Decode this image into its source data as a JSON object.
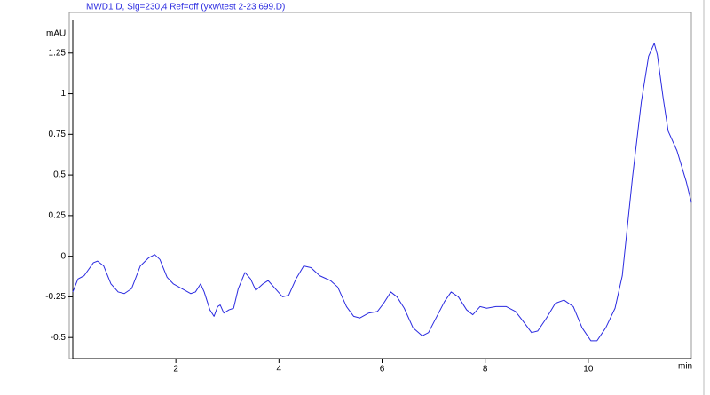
{
  "chart_data": {
    "type": "line",
    "title": "MWD1 D, Sig=230,4 Ref=off (yxw\\test 2-23 699.D)",
    "y_label": "mAU",
    "x_label": "min",
    "xlim": [
      0,
      12
    ],
    "ylim": [
      -0.63,
      1.5
    ],
    "xticks": [
      2,
      4,
      6,
      8,
      10
    ],
    "yticks": [
      -0.5,
      -0.25,
      0,
      0.25,
      0.5,
      0.75,
      1,
      1.25
    ],
    "x": [
      0,
      0.1,
      0.22,
      0.4,
      0.48,
      0.6,
      0.74,
      0.88,
      1.0,
      1.14,
      1.31,
      1.47,
      1.59,
      1.69,
      1.83,
      1.95,
      2.12,
      2.29,
      2.38,
      2.48,
      2.55,
      2.66,
      2.74,
      2.81,
      2.86,
      2.93,
      3.03,
      3.12,
      3.21,
      3.34,
      3.45,
      3.55,
      3.69,
      3.79,
      3.93,
      4.07,
      4.19,
      4.33,
      4.48,
      4.62,
      4.79,
      5.0,
      5.14,
      5.31,
      5.45,
      5.57,
      5.74,
      5.91,
      6.03,
      6.17,
      6.29,
      6.43,
      6.6,
      6.78,
      6.9,
      7.03,
      7.21,
      7.34,
      7.48,
      7.64,
      7.76,
      7.9,
      8.03,
      8.21,
      8.41,
      8.59,
      8.76,
      8.9,
      9.02,
      9.19,
      9.36,
      9.53,
      9.71,
      9.88,
      10.05,
      10.17,
      10.34,
      10.52,
      10.66,
      10.86,
      11.03,
      11.17,
      11.28,
      11.34,
      11.45,
      11.55,
      11.72,
      11.9,
      12.0
    ],
    "series": [
      {
        "color": "#2a2ae0",
        "values": [
          -0.22,
          -0.14,
          -0.12,
          -0.04,
          -0.03,
          -0.06,
          -0.17,
          -0.22,
          -0.23,
          -0.2,
          -0.06,
          -0.01,
          0.01,
          -0.02,
          -0.13,
          -0.17,
          -0.2,
          -0.23,
          -0.22,
          -0.17,
          -0.22,
          -0.33,
          -0.37,
          -0.31,
          -0.3,
          -0.35,
          -0.33,
          -0.32,
          -0.2,
          -0.1,
          -0.14,
          -0.21,
          -0.17,
          -0.15,
          -0.2,
          -0.25,
          -0.24,
          -0.14,
          -0.06,
          -0.07,
          -0.12,
          -0.15,
          -0.19,
          -0.31,
          -0.37,
          -0.38,
          -0.35,
          -0.34,
          -0.29,
          -0.22,
          -0.25,
          -0.32,
          -0.44,
          -0.49,
          -0.47,
          -0.39,
          -0.28,
          -0.22,
          -0.25,
          -0.33,
          -0.36,
          -0.31,
          -0.32,
          -0.31,
          -0.31,
          -0.34,
          -0.41,
          -0.47,
          -0.46,
          -0.38,
          -0.29,
          -0.27,
          -0.31,
          -0.44,
          -0.52,
          -0.52,
          -0.44,
          -0.32,
          -0.12,
          0.49,
          0.95,
          1.23,
          1.31,
          1.24,
          0.98,
          0.77,
          0.65,
          0.46,
          0.33
        ]
      }
    ]
  }
}
